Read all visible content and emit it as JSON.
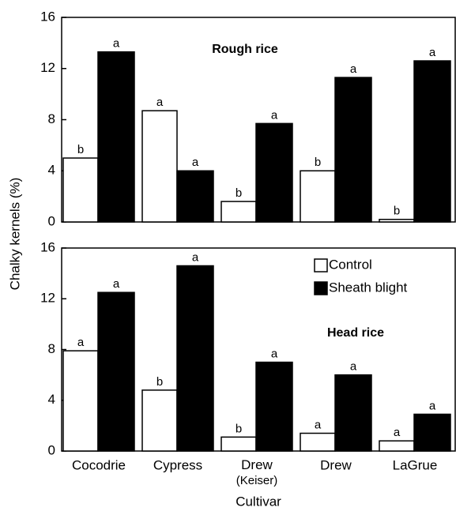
{
  "chart_data": [
    {
      "type": "bar",
      "title": "Rough rice",
      "ylabel": "Chalky kernels (%)",
      "categories": [
        "Cocodrie",
        "Cypress",
        "Drew (Keiser)",
        "Drew",
        "LaGrue"
      ],
      "series": [
        {
          "name": "Control",
          "color": "#ffffff",
          "values": [
            5.0,
            8.7,
            1.6,
            4.0,
            0.2
          ],
          "letters": [
            "b",
            "a",
            "b",
            "b",
            "b"
          ]
        },
        {
          "name": "Sheath blight",
          "color": "#000000",
          "values": [
            13.3,
            4.0,
            7.7,
            11.3,
            12.6
          ],
          "letters": [
            "a",
            "a",
            "a",
            "a",
            "a"
          ]
        }
      ],
      "ylim": [
        0,
        16
      ],
      "yticks": [
        0,
        4,
        8,
        12,
        16
      ]
    },
    {
      "type": "bar",
      "title": "Head rice",
      "xlabel": "Cultivar",
      "legend": "upper right",
      "categories": [
        "Cocodrie",
        "Cypress",
        "Drew (Keiser)",
        "Drew",
        "LaGrue"
      ],
      "series": [
        {
          "name": "Control",
          "color": "#ffffff",
          "values": [
            7.9,
            4.8,
            1.1,
            1.4,
            0.8
          ],
          "letters": [
            "a",
            "b",
            "b",
            "a",
            "a"
          ]
        },
        {
          "name": "Sheath blight",
          "color": "#000000",
          "values": [
            12.5,
            14.6,
            7.0,
            6.0,
            2.9
          ],
          "letters": [
            "a",
            "a",
            "a",
            "a",
            "a"
          ]
        }
      ],
      "ylim": [
        0,
        16
      ],
      "yticks": [
        0,
        4,
        8,
        12,
        16
      ]
    }
  ]
}
